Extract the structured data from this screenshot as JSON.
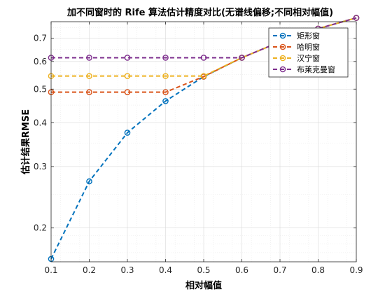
{
  "chart_data": {
    "type": "line",
    "title": "加不同窗时的 Rife 算法估计精度对比(无谱线偏移;不同相对幅值)",
    "xlabel": "相对幅值",
    "ylabel": "估计结果RMSE",
    "y_scale": "log",
    "grid": true,
    "legend_position": "top-right",
    "xlim": [
      0.1,
      0.9
    ],
    "ylim": [
      0.16,
      0.78
    ],
    "x": [
      0.1,
      0.2,
      0.3,
      0.4,
      0.5,
      0.6,
      0.7,
      0.8,
      0.9
    ],
    "x_ticks": [
      "0.1",
      "0.2",
      "0.3",
      "0.4",
      "0.5",
      "0.6",
      "0.7",
      "0.8",
      "0.9"
    ],
    "y_ticks": [
      {
        "value": 0.2,
        "label": "0.2"
      },
      {
        "value": 0.3,
        "label": "0.3"
      },
      {
        "value": 0.4,
        "label": "0.4"
      },
      {
        "value": 0.5,
        "label": "0.5"
      },
      {
        "value": 0.6,
        "label": "0.6"
      },
      {
        "value": 0.7,
        "label": "0.7"
      }
    ],
    "series": [
      {
        "name": "矩形窗",
        "color": "#0072BD",
        "values": [
          0.163,
          0.272,
          0.375,
          0.462,
          0.543,
          0.615,
          0.683,
          0.745,
          0.8
        ]
      },
      {
        "name": "哈明窗",
        "color": "#D95319",
        "values": [
          0.49,
          0.49,
          0.49,
          0.49,
          0.543,
          0.615,
          0.683,
          0.745,
          0.8
        ]
      },
      {
        "name": "汉宁窗",
        "color": "#EDB120",
        "values": [
          0.545,
          0.545,
          0.545,
          0.545,
          0.545,
          0.615,
          0.683,
          0.745,
          0.8
        ]
      },
      {
        "name": "布莱克曼窗",
        "color": "#7E2F8E",
        "values": [
          0.615,
          0.615,
          0.615,
          0.615,
          0.615,
          0.615,
          0.683,
          0.745,
          0.8
        ]
      }
    ]
  }
}
